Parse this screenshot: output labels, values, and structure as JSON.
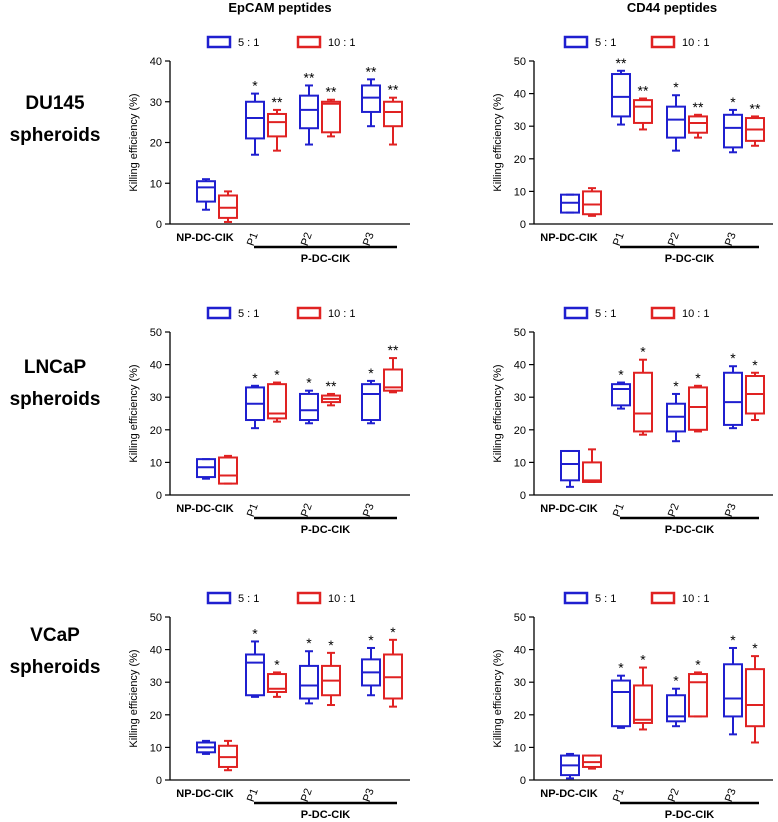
{
  "column_titles": [
    "EpCAM peptides",
    "CD44 peptides"
  ],
  "row_labels": [
    {
      "line1": "DU145",
      "line2": "spheroids"
    },
    {
      "line1": "LNCaP",
      "line2": "spheroids"
    },
    {
      "line1": "VCaP",
      "line2": "spheroids"
    }
  ],
  "legend": [
    {
      "label": "5 : 1",
      "color": "#1f1fcf"
    },
    {
      "label": "10 : 1",
      "color": "#e02222"
    }
  ],
  "colors": {
    "ratio_5_1": "#1f1fcf",
    "ratio_10_1": "#e02222",
    "axis": "#000000"
  },
  "chart_data": [
    {
      "type": "boxplot",
      "row": "DU145 spheroids",
      "column": "EpCAM peptides",
      "ylabel": "Killing efficiency (%)",
      "ylim": [
        0,
        40
      ],
      "yticks": [
        0,
        10,
        20,
        30,
        40
      ],
      "categories": [
        "NP-DC-CIK",
        "P1",
        "P2",
        "P3"
      ],
      "group_label": "P-DC-CIK",
      "series": [
        {
          "name": "5 : 1",
          "boxes": [
            {
              "min": 3.5,
              "q1": 5.5,
              "median": 9,
              "q3": 10.5,
              "max": 11,
              "sig": ""
            },
            {
              "min": 17,
              "q1": 21,
              "median": 26,
              "q3": 30,
              "max": 32,
              "sig": "*"
            },
            {
              "min": 19.5,
              "q1": 23.5,
              "median": 28,
              "q3": 31.5,
              "max": 34,
              "sig": "**"
            },
            {
              "min": 24,
              "q1": 27.5,
              "median": 31,
              "q3": 34,
              "max": 35.5,
              "sig": "**"
            }
          ]
        },
        {
          "name": "10 : 1",
          "boxes": [
            {
              "min": 0.5,
              "q1": 1.5,
              "median": 4,
              "q3": 7,
              "max": 8,
              "sig": ""
            },
            {
              "min": 18,
              "q1": 21.5,
              "median": 25,
              "q3": 27,
              "max": 28,
              "sig": "**"
            },
            {
              "min": 21.5,
              "q1": 22.5,
              "median": 29.5,
              "q3": 30,
              "max": 30.5,
              "sig": "**"
            },
            {
              "min": 19.5,
              "q1": 24,
              "median": 27.5,
              "q3": 30,
              "max": 31,
              "sig": "**"
            }
          ]
        }
      ]
    },
    {
      "type": "boxplot",
      "row": "DU145 spheroids",
      "column": "CD44 peptides",
      "ylabel": "Killing efficiency (%)",
      "ylim": [
        0,
        50
      ],
      "yticks": [
        0,
        10,
        20,
        30,
        40,
        50
      ],
      "categories": [
        "NP-DC-CIK",
        "P1",
        "P2",
        "P3"
      ],
      "group_label": "P-DC-CIK",
      "series": [
        {
          "name": "5 : 1",
          "boxes": [
            {
              "min": 3.5,
              "q1": 3.5,
              "median": 6.5,
              "q3": 9,
              "max": 9,
              "sig": ""
            },
            {
              "min": 30.5,
              "q1": 33,
              "median": 39,
              "q3": 46,
              "max": 47,
              "sig": "**"
            },
            {
              "min": 22.5,
              "q1": 26.5,
              "median": 32,
              "q3": 36,
              "max": 39.5,
              "sig": "*"
            },
            {
              "min": 22,
              "q1": 23.5,
              "median": 29.5,
              "q3": 33.5,
              "max": 35,
              "sig": "*"
            }
          ]
        },
        {
          "name": "10 : 1",
          "boxes": [
            {
              "min": 2.5,
              "q1": 3,
              "median": 6,
              "q3": 10,
              "max": 11,
              "sig": ""
            },
            {
              "min": 29,
              "q1": 31,
              "median": 36,
              "q3": 38,
              "max": 38.5,
              "sig": "**"
            },
            {
              "min": 26.5,
              "q1": 28,
              "median": 31,
              "q3": 33,
              "max": 33.5,
              "sig": "**"
            },
            {
              "min": 24,
              "q1": 25.5,
              "median": 29,
              "q3": 32.5,
              "max": 33,
              "sig": "**"
            }
          ]
        }
      ]
    },
    {
      "type": "boxplot",
      "row": "LNCaP spheroids",
      "column": "EpCAM peptides",
      "ylabel": "Killing efficiency (%)",
      "ylim": [
        0,
        50
      ],
      "yticks": [
        0,
        10,
        20,
        30,
        40,
        50
      ],
      "categories": [
        "NP-DC-CIK",
        "P1",
        "P2",
        "P3"
      ],
      "group_label": "P-DC-CIK",
      "series": [
        {
          "name": "5 : 1",
          "boxes": [
            {
              "min": 5,
              "q1": 5.5,
              "median": 8.5,
              "q3": 11,
              "max": 11,
              "sig": ""
            },
            {
              "min": 20.5,
              "q1": 23,
              "median": 28,
              "q3": 33,
              "max": 33.5,
              "sig": "*"
            },
            {
              "min": 22,
              "q1": 23,
              "median": 26,
              "q3": 31,
              "max": 32,
              "sig": "*"
            },
            {
              "min": 22,
              "q1": 23,
              "median": 31,
              "q3": 34,
              "max": 35,
              "sig": "*"
            }
          ]
        },
        {
          "name": "10 : 1",
          "boxes": [
            {
              "min": 3.5,
              "q1": 3.5,
              "median": 6,
              "q3": 11.5,
              "max": 12,
              "sig": ""
            },
            {
              "min": 22.5,
              "q1": 23.5,
              "median": 25,
              "q3": 34,
              "max": 34.5,
              "sig": "*"
            },
            {
              "min": 27.5,
              "q1": 28.5,
              "median": 29.5,
              "q3": 30.5,
              "max": 31,
              "sig": "**"
            },
            {
              "min": 31.5,
              "q1": 32,
              "median": 33,
              "q3": 38.5,
              "max": 42,
              "sig": "**"
            }
          ]
        }
      ]
    },
    {
      "type": "boxplot",
      "row": "LNCaP spheroids",
      "column": "CD44 peptides",
      "ylabel": "Killing efficiency (%)",
      "ylim": [
        0,
        50
      ],
      "yticks": [
        0,
        10,
        20,
        30,
        40,
        50
      ],
      "categories": [
        "NP-DC-CIK",
        "P1",
        "P2",
        "P3"
      ],
      "group_label": "P-DC-CIK",
      "series": [
        {
          "name": "5 : 1",
          "boxes": [
            {
              "min": 2.5,
              "q1": 4.5,
              "median": 9.5,
              "q3": 13.5,
              "max": 13.5,
              "sig": ""
            },
            {
              "min": 26.5,
              "q1": 27.5,
              "median": 32.5,
              "q3": 34,
              "max": 34.5,
              "sig": "*"
            },
            {
              "min": 16.5,
              "q1": 19.5,
              "median": 24,
              "q3": 28,
              "max": 31,
              "sig": "*"
            },
            {
              "min": 20.5,
              "q1": 21.5,
              "median": 28.5,
              "q3": 37.5,
              "max": 39.5,
              "sig": "*"
            }
          ]
        },
        {
          "name": "10 : 1",
          "boxes": [
            {
              "min": 4,
              "q1": 4,
              "median": 4.5,
              "q3": 10,
              "max": 14,
              "sig": ""
            },
            {
              "min": 18.5,
              "q1": 19.5,
              "median": 25,
              "q3": 37.5,
              "max": 41.5,
              "sig": "*"
            },
            {
              "min": 19.5,
              "q1": 20,
              "median": 27,
              "q3": 33,
              "max": 33.5,
              "sig": "*"
            },
            {
              "min": 23,
              "q1": 25,
              "median": 31,
              "q3": 36.5,
              "max": 37.5,
              "sig": "*"
            }
          ]
        }
      ]
    },
    {
      "type": "boxplot",
      "row": "VCaP spheroids",
      "column": "EpCAM peptides",
      "ylabel": "Killing efficiency (%)",
      "ylim": [
        0,
        50
      ],
      "yticks": [
        0,
        10,
        20,
        30,
        40,
        50
      ],
      "categories": [
        "NP-DC-CIK",
        "P1",
        "P2",
        "P3"
      ],
      "group_label": "P-DC-CIK",
      "series": [
        {
          "name": "5 : 1",
          "boxes": [
            {
              "min": 8,
              "q1": 8.5,
              "median": 10,
              "q3": 11.5,
              "max": 12,
              "sig": ""
            },
            {
              "min": 25.5,
              "q1": 26,
              "median": 36,
              "q3": 38.5,
              "max": 42.5,
              "sig": "*"
            },
            {
              "min": 23.5,
              "q1": 25,
              "median": 29,
              "q3": 35,
              "max": 39.5,
              "sig": "*"
            },
            {
              "min": 26,
              "q1": 29,
              "median": 33,
              "q3": 37,
              "max": 40.5,
              "sig": "*"
            }
          ]
        },
        {
          "name": "10 : 1",
          "boxes": [
            {
              "min": 3,
              "q1": 4,
              "median": 7,
              "q3": 10.5,
              "max": 12,
              "sig": ""
            },
            {
              "min": 25.5,
              "q1": 27,
              "median": 28,
              "q3": 32.5,
              "max": 33,
              "sig": "*"
            },
            {
              "min": 23,
              "q1": 26,
              "median": 30.5,
              "q3": 35,
              "max": 39,
              "sig": "*"
            },
            {
              "min": 22.5,
              "q1": 25,
              "median": 31.5,
              "q3": 38.5,
              "max": 43,
              "sig": "*"
            }
          ]
        }
      ]
    },
    {
      "type": "boxplot",
      "row": "VCaP spheroids",
      "column": "CD44 peptides",
      "ylabel": "Killing efficiency (%)",
      "ylim": [
        0,
        50
      ],
      "yticks": [
        0,
        10,
        20,
        30,
        40,
        50
      ],
      "categories": [
        "NP-DC-CIK",
        "P1",
        "P2",
        "P3"
      ],
      "group_label": "P-DC-CIK",
      "series": [
        {
          "name": "5 : 1",
          "boxes": [
            {
              "min": 0.5,
              "q1": 1.5,
              "median": 4.5,
              "q3": 7.5,
              "max": 8,
              "sig": ""
            },
            {
              "min": 16,
              "q1": 16.5,
              "median": 27,
              "q3": 30.5,
              "max": 32,
              "sig": "*"
            },
            {
              "min": 16.5,
              "q1": 18,
              "median": 19.5,
              "q3": 26,
              "max": 28,
              "sig": "*"
            },
            {
              "min": 14,
              "q1": 19.5,
              "median": 25,
              "q3": 35.5,
              "max": 40.5,
              "sig": "*"
            }
          ]
        },
        {
          "name": "10 : 1",
          "boxes": [
            {
              "min": 3.5,
              "q1": 4,
              "median": 5.5,
              "q3": 7.5,
              "max": 7.5,
              "sig": ""
            },
            {
              "min": 15.5,
              "q1": 17.5,
              "median": 18.5,
              "q3": 29,
              "max": 34.5,
              "sig": "*"
            },
            {
              "min": 19.5,
              "q1": 19.5,
              "median": 30,
              "q3": 32.5,
              "max": 33,
              "sig": "*"
            },
            {
              "min": 11.5,
              "q1": 16.5,
              "median": 23,
              "q3": 34,
              "max": 38,
              "sig": "*"
            }
          ]
        }
      ]
    }
  ]
}
